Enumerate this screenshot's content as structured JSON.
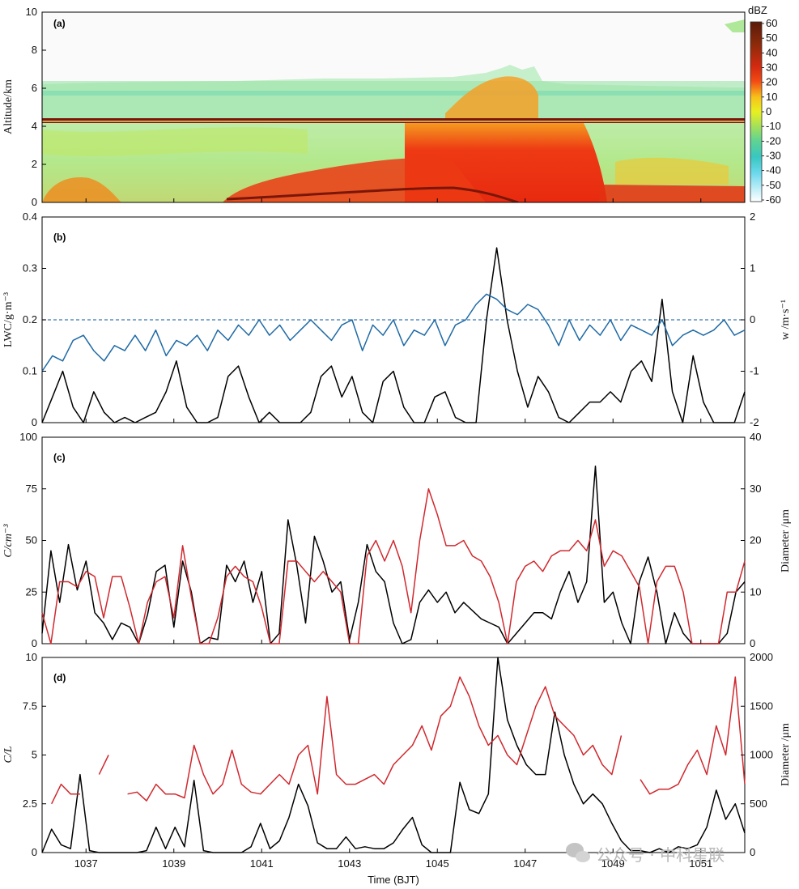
{
  "xlabel": "Time (BJT)",
  "x_ticks": [
    "1037",
    "1039",
    "1041",
    "1043",
    "1045",
    "1047",
    "1049",
    "1051"
  ],
  "watermark": "公众号 · 中科星联",
  "chart_data": [
    {
      "panel": "(a)",
      "type": "heatmap",
      "ylabel": "Altitude/km",
      "ylim": [
        0,
        10
      ],
      "y_ticks": [
        "0",
        "2",
        "4",
        "6",
        "8",
        "10"
      ],
      "colorbar": {
        "label": "dBZ",
        "ticks": [
          "60",
          "50",
          "40",
          "30",
          "20",
          "10",
          "0",
          "-10",
          "-20",
          "-30",
          "-40",
          "-50",
          "-60"
        ],
        "range": [
          -60,
          60
        ]
      },
      "melting_layer_km": 4.3,
      "echo_top_km": [
        5.3,
        5.4,
        5.6,
        5.6,
        5.7,
        5.8,
        5.8,
        6.0,
        6.4,
        7.0,
        6.8,
        5.8,
        5.4,
        5.3,
        5.2,
        5.1
      ],
      "strong_echo_window": [
        "1044.5",
        "1047.0"
      ]
    },
    {
      "panel": "(b)",
      "type": "line",
      "ylabel": "LWC/g·m⁻³",
      "ylabel2": "w /m·s⁻¹",
      "ylim": [
        0,
        0.4
      ],
      "y_ticks": [
        "0",
        "0.1",
        "0.2",
        "0.3",
        "0.4"
      ],
      "y2lim": [
        -2,
        2
      ],
      "y2_ticks": [
        "-2",
        "-1",
        "0",
        "1",
        "2"
      ],
      "reference_line_y2": 0,
      "series": [
        {
          "color": "#000000",
          "axis": "left",
          "values": [
            0.0,
            0.05,
            0.1,
            0.03,
            0.0,
            0.06,
            0.02,
            0.0,
            0.01,
            0.0,
            0.01,
            0.02,
            0.06,
            0.12,
            0.03,
            0.0,
            0.0,
            0.01,
            0.09,
            0.11,
            0.05,
            0.0,
            0.02,
            0.0,
            0.0,
            0.0,
            0.02,
            0.09,
            0.11,
            0.05,
            0.09,
            0.02,
            0.0,
            0.08,
            0.1,
            0.03,
            0.0,
            0.0,
            0.05,
            0.06,
            0.01,
            0.0,
            0.0,
            0.2,
            0.34,
            0.2,
            0.1,
            0.03,
            0.09,
            0.06,
            0.01,
            0.0,
            0.02,
            0.04,
            0.04,
            0.06,
            0.04,
            0.1,
            0.12,
            0.08,
            0.24,
            0.06,
            0.0,
            0.13,
            0.04,
            0.0,
            0.0,
            0.0,
            0.06
          ]
        },
        {
          "color": "#1f6aa5",
          "axis": "right",
          "values": [
            -1.0,
            -0.7,
            -0.8,
            -0.4,
            -0.3,
            -0.6,
            -0.8,
            -0.5,
            -0.6,
            -0.3,
            -0.6,
            -0.2,
            -0.7,
            -0.4,
            -0.5,
            -0.3,
            -0.6,
            -0.2,
            -0.4,
            -0.1,
            -0.3,
            0.0,
            -0.3,
            -0.1,
            -0.4,
            -0.2,
            0.0,
            -0.2,
            -0.4,
            -0.1,
            0.0,
            -0.6,
            -0.1,
            -0.3,
            0.0,
            -0.5,
            -0.2,
            -0.3,
            0.0,
            -0.5,
            -0.1,
            0.0,
            0.3,
            0.5,
            0.4,
            0.2,
            0.1,
            0.3,
            0.2,
            -0.1,
            -0.5,
            0.0,
            -0.4,
            -0.1,
            -0.3,
            0.0,
            -0.4,
            -0.1,
            -0.2,
            -0.3,
            0.0,
            -0.5,
            -0.3,
            -0.2,
            -0.3,
            -0.2,
            0.0,
            -0.3,
            -0.2
          ]
        }
      ]
    },
    {
      "panel": "(c)",
      "type": "line",
      "ylabel": "C/cm⁻³",
      "ylabel2": "Diameter /μm",
      "ylim": [
        0,
        100
      ],
      "y_ticks": [
        "0",
        "25",
        "50",
        "75",
        "100"
      ],
      "y2lim": [
        0,
        40
      ],
      "y2_ticks": [
        "0",
        "10",
        "20",
        "30",
        "40"
      ],
      "series": [
        {
          "color": "#000000",
          "axis": "left",
          "values": [
            5,
            45,
            20,
            48,
            26,
            40,
            15,
            10,
            2,
            10,
            8,
            0,
            14,
            35,
            38,
            8,
            40,
            25,
            0,
            3,
            2,
            38,
            30,
            40,
            20,
            35,
            0,
            5,
            60,
            38,
            10,
            52,
            40,
            25,
            30,
            2,
            20,
            48,
            35,
            30,
            10,
            0,
            2,
            20,
            26,
            20,
            25,
            15,
            20,
            16,
            12,
            10,
            8,
            0,
            5,
            10,
            15,
            15,
            12,
            25,
            35,
            20,
            30,
            86,
            20,
            25,
            10,
            0,
            30,
            42,
            25,
            0,
            15,
            5,
            0,
            0,
            0,
            0,
            5,
            25,
            30
          ]
        },
        {
          "color": "#d0282e",
          "axis": "right",
          "values": [
            6,
            0,
            12,
            12,
            11,
            14,
            13,
            5,
            13,
            13,
            7,
            0,
            8,
            12,
            13,
            5,
            19,
            9,
            0,
            0,
            5,
            13,
            15,
            13,
            12,
            7,
            0,
            0,
            16,
            16,
            14,
            12,
            14,
            12,
            10,
            0,
            0,
            17,
            20,
            16,
            20,
            15,
            6,
            20,
            30,
            25,
            19,
            19,
            20,
            17,
            16,
            13,
            8,
            0,
            12,
            15,
            16,
            14,
            17,
            18,
            18,
            20,
            18,
            24,
            15,
            18,
            17,
            14,
            11,
            0,
            12,
            15,
            15,
            10,
            0,
            0,
            0,
            0,
            10,
            10,
            16
          ]
        }
      ]
    },
    {
      "panel": "(d)",
      "type": "line",
      "ylabel": "C/L",
      "ylabel2": "Diameter /μm",
      "ylim": [
        0,
        10
      ],
      "y_ticks": [
        "0",
        "2.5",
        "5",
        "7.5",
        "10"
      ],
      "y2lim": [
        0,
        2000
      ],
      "y2_ticks": [
        "0",
        "500",
        "1000",
        "1500",
        "2000"
      ],
      "series": [
        {
          "color": "#000000",
          "axis": "left",
          "values": [
            0,
            1.2,
            0.4,
            0.2,
            4.0,
            0.1,
            0,
            0,
            0,
            0,
            0,
            0.1,
            1.3,
            0.2,
            1.3,
            0.3,
            3.7,
            0.1,
            0,
            0,
            0,
            0,
            0.3,
            1.5,
            0.2,
            0.6,
            1.8,
            3.5,
            2.4,
            0.5,
            0.2,
            0.2,
            0.8,
            0.2,
            0.3,
            0.2,
            0.2,
            0.5,
            1.2,
            1.8,
            0.4,
            0,
            0,
            0,
            3.6,
            2.2,
            2.0,
            3.0,
            10,
            6.8,
            5.5,
            4.5,
            4.0,
            4.0,
            7.2,
            5.0,
            3.5,
            2.5,
            3.0,
            2.5,
            1.5,
            0.6,
            0.1,
            0.1,
            0,
            0.2,
            0,
            0.3,
            0.2,
            0.4,
            1.3,
            3.2,
            1.7,
            2.5,
            1.0
          ]
        },
        {
          "color": "#d0282e",
          "axis": "right",
          "values": [
            null,
            500,
            700,
            600,
            600,
            null,
            800,
            1000,
            null,
            600,
            620,
            530,
            700,
            600,
            600,
            560,
            1100,
            800,
            600,
            700,
            1050,
            700,
            620,
            600,
            700,
            800,
            700,
            1000,
            1100,
            600,
            1600,
            800,
            700,
            700,
            750,
            800,
            700,
            900,
            1000,
            1100,
            1300,
            1050,
            1400,
            1500,
            1800,
            1600,
            1300,
            1100,
            1200,
            1000,
            900,
            1200,
            1500,
            1700,
            1400,
            1300,
            1200,
            1000,
            1100,
            900,
            800,
            1200,
            null,
            750,
            600,
            650,
            650,
            700,
            900,
            1050,
            800,
            1300,
            1000,
            1800,
            700
          ]
        }
      ]
    }
  ]
}
